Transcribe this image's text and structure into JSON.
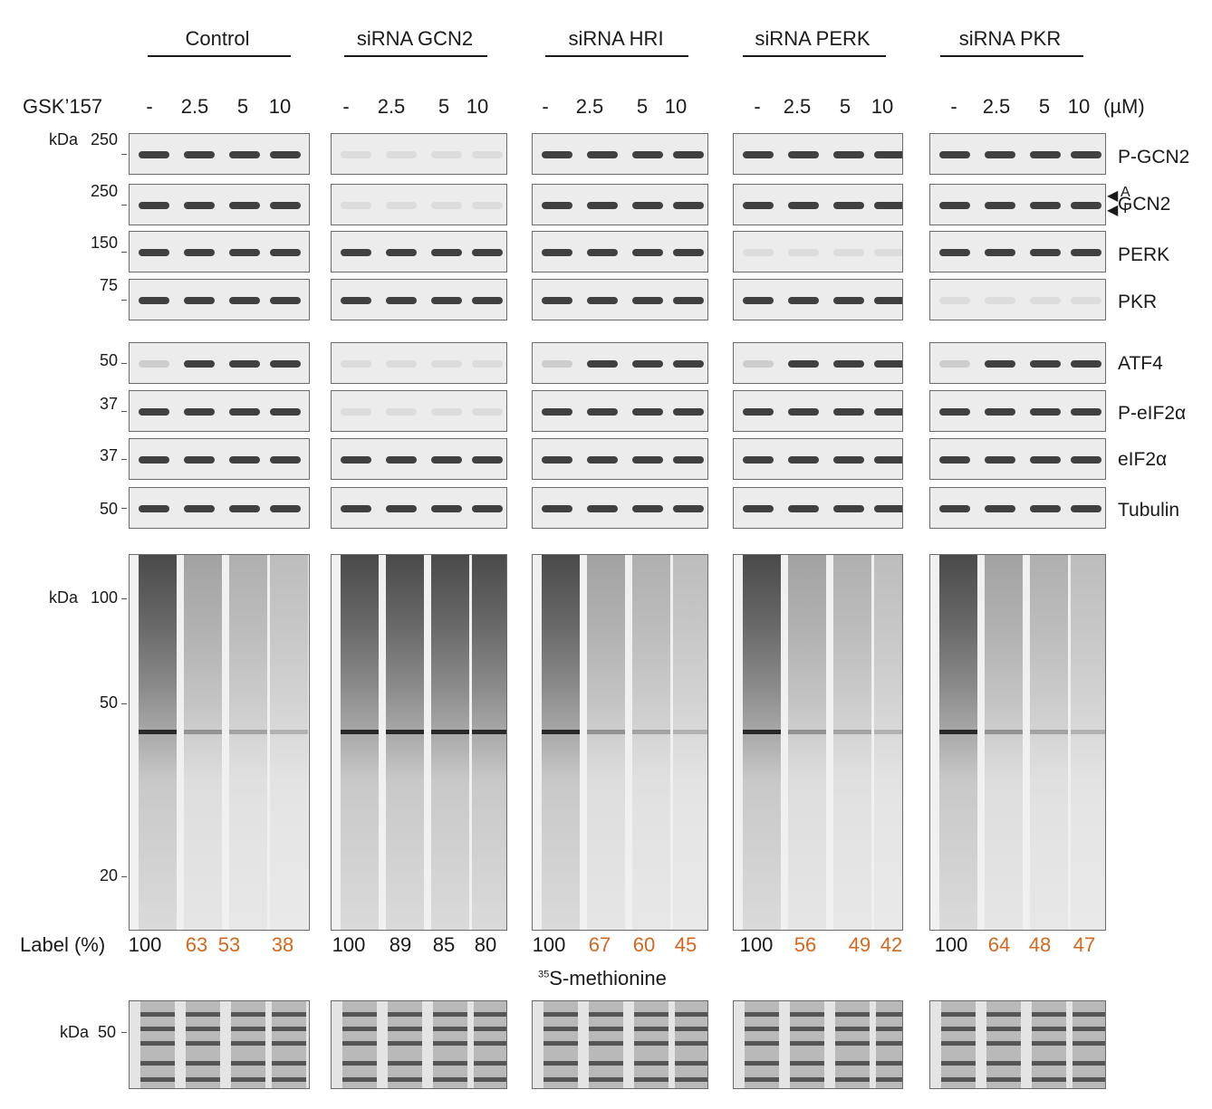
{
  "groups": [
    {
      "name": "Control",
      "labels": [
        "100",
        "63",
        "53",
        "38"
      ]
    },
    {
      "name": "siRNA GCN2",
      "labels": [
        "100",
        "89",
        "85",
        "80"
      ]
    },
    {
      "name": "siRNA HRI",
      "labels": [
        "100",
        "67",
        "60",
        "45"
      ]
    },
    {
      "name": "siRNA PERK",
      "labels": [
        "100",
        "56",
        "49",
        "42"
      ]
    },
    {
      "name": "siRNA PKR",
      "labels": [
        "100",
        "64",
        "48",
        "47"
      ]
    }
  ],
  "treatment_label": "GSK’157",
  "doses": [
    "-",
    "2.5",
    "5",
    "10"
  ],
  "dose_unit": "(µM)",
  "proteins": [
    "P-GCN2",
    "GCN2",
    "PERK",
    "PKR",
    "ATF4",
    "P-eIF2α",
    "eIF2α",
    "Tubulin"
  ],
  "gcn2_markers": [
    "A",
    "I"
  ],
  "mw_blot": [
    "250",
    "250",
    "150",
    "75",
    "50",
    "37",
    "37",
    "50"
  ],
  "mw_blot_unit": "kDa",
  "mw_gel": [
    "100",
    "50",
    "20"
  ],
  "mw_stain": [
    "50"
  ],
  "label_row_title": "Label (%)",
  "label_colors": {
    "baseline": "#1a1a1a",
    "reduced": "#d2691e"
  },
  "gel_caption_sup": "35",
  "gel_caption": "S-methionine"
}
